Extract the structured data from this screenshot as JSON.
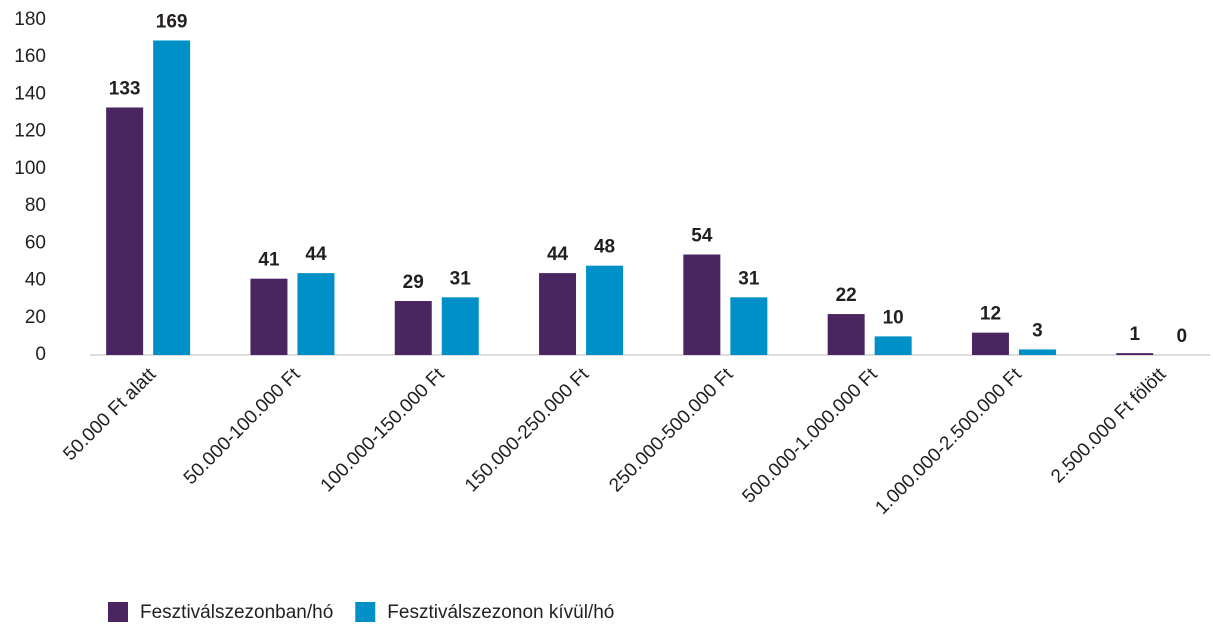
{
  "chart_data": {
    "type": "bar",
    "categories": [
      "50.000 Ft alatt",
      "50.000-100.000 Ft",
      "100.000-150.000 Ft",
      "150.000-250.000 Ft",
      "250.000-500.000 Ft",
      "500.000-1.000.000 Ft",
      "1.000.000-2.500.000 Ft",
      "2.500.000 Ft fölött"
    ],
    "series": [
      {
        "name": "Fesztiválszezonban/hó",
        "color": "#4a2560",
        "values": [
          133,
          41,
          29,
          44,
          54,
          22,
          12,
          1
        ]
      },
      {
        "name": "Fesztiválszezonon kívül/hó",
        "color": "#0090c8",
        "values": [
          169,
          44,
          31,
          48,
          31,
          10,
          3,
          0
        ]
      }
    ],
    "ylim": [
      0,
      180
    ],
    "yticks": [
      0,
      20,
      40,
      60,
      80,
      100,
      120,
      140,
      160,
      180
    ],
    "grid": false,
    "legend": "bottom"
  }
}
